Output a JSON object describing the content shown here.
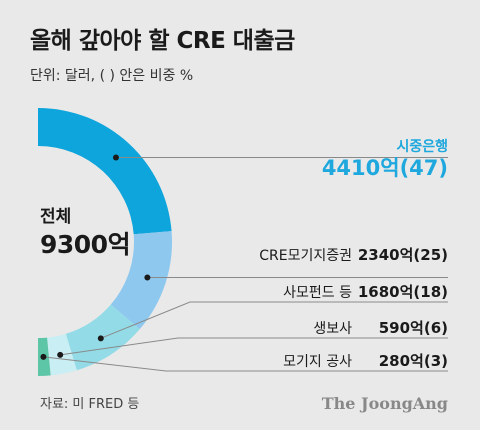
{
  "title": "올해 갚아야 할 CRE 대출금",
  "unit_note": "단위: 달러, ( ) 안은 비중 %",
  "total": {
    "label": "전체",
    "value": "9300억"
  },
  "source": "자료: 미 FRED 등",
  "brand": "The JoongAng",
  "chart_data": {
    "type": "pie",
    "shape": "half-donut",
    "total": 9300,
    "categories": [
      "시중은행",
      "CRE모기지증권",
      "사모펀드 등",
      "생보사",
      "모기지 공사"
    ],
    "values": [
      4410,
      2340,
      1680,
      590,
      280
    ],
    "shares": [
      47,
      25,
      18,
      6,
      3
    ],
    "value_labels": [
      "4410억(47)",
      "2340억(25)",
      "1680억(18)",
      "590억(6)",
      "280억(3)"
    ],
    "colors": [
      "#0ea5dc",
      "#8ec8ee",
      "#93dbe6",
      "#c9eef3",
      "#5cc6a6"
    ],
    "highlight": "시중은행",
    "highlight_color": "#1ea8dd"
  }
}
